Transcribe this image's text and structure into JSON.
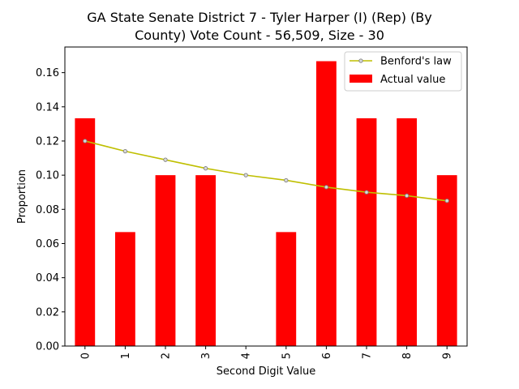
{
  "title_lines": [
    "GA State Senate District 7 - Tyler Harper (I) (Rep) (By",
    "County) Vote Count - 56,509, Size - 30"
  ],
  "colors": {
    "bar": "#ff0000",
    "benford_line": "#bfbf00",
    "benford_marker_face": "#d9d9d9",
    "benford_marker_edge": "#808080"
  },
  "chart_data": {
    "type": "bar",
    "title": "GA State Senate District 7 - Tyler Harper (I) (Rep) (By County) Vote Count - 56,509, Size - 30",
    "xlabel": "Second Digit Value",
    "ylabel": "Proportion",
    "categories": [
      "0",
      "1",
      "2",
      "3",
      "4",
      "5",
      "6",
      "7",
      "8",
      "9"
    ],
    "ylim": [
      0,
      0.175
    ],
    "yticks": [
      "0.00",
      "0.02",
      "0.04",
      "0.06",
      "0.08",
      "0.10",
      "0.12",
      "0.14",
      "0.16"
    ],
    "grid": false,
    "legend": "top-right",
    "series": [
      {
        "name": "Actual value",
        "kind": "bar",
        "values": [
          0.1333,
          0.0667,
          0.1,
          0.1,
          0.0,
          0.0667,
          0.1667,
          0.1333,
          0.1333,
          0.1
        ]
      },
      {
        "name": "Benford's law",
        "kind": "line",
        "values": [
          0.12,
          0.114,
          0.109,
          0.104,
          0.1,
          0.097,
          0.093,
          0.09,
          0.088,
          0.085
        ]
      }
    ]
  }
}
